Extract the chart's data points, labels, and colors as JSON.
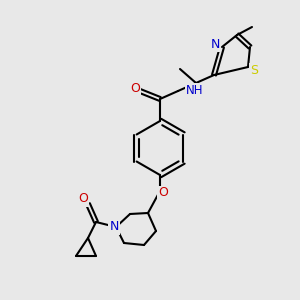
{
  "background_color": "#e8e8e8",
  "colors": {
    "C": "#000000",
    "N": "#0000cc",
    "O": "#cc0000",
    "S": "#cccc00",
    "bond": "#000000"
  },
  "lw": 1.5,
  "fs": 8.5
}
